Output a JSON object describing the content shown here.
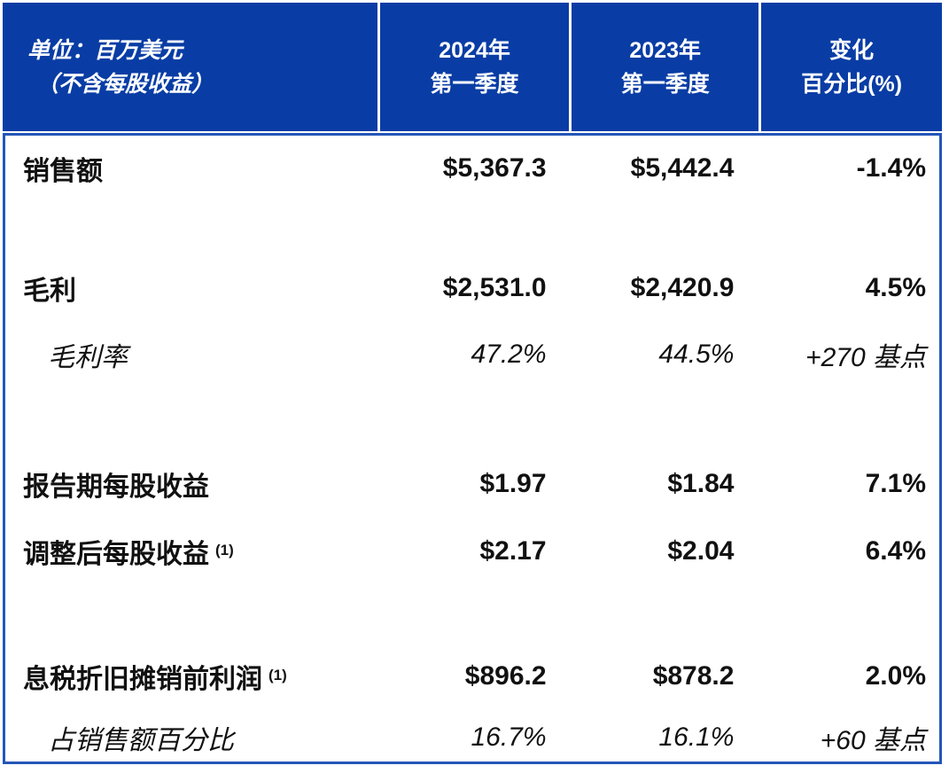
{
  "colors": {
    "header_blue": "#093da5",
    "border_blue": "#2456b8",
    "header_text": "#ffffff",
    "body_text": "#111111"
  },
  "table": {
    "header": {
      "unit_line1": "单位：百万美元",
      "unit_line2": "（不含每股收益）",
      "col2024_line1": "2024年",
      "col2024_line2": "第一季度",
      "col2023_line1": "2023年",
      "col2023_line2": "第一季度",
      "change_line1": "变化",
      "change_line2": "百分比(%)"
    },
    "rows": [
      {
        "label": "销售额",
        "v2024": "$5,367.3",
        "v2023": "$5,442.4",
        "change": "-1.4%"
      },
      {
        "label": "毛利",
        "v2024": "$2,531.0",
        "v2023": "$2,420.9",
        "change": "4.5%"
      },
      {
        "label": "毛利率",
        "v2024": "47.2%",
        "v2023": "44.5%",
        "change": "+270 基点"
      },
      {
        "label": "报告期每股收益",
        "v2024": "$1.97",
        "v2023": "$1.84",
        "change": "7.1%"
      },
      {
        "label": "调整后每股收益",
        "sup": "(1)",
        "v2024": "$2.17",
        "v2023": "$2.04",
        "change": "6.4%"
      },
      {
        "label": "息税折旧摊销前利润",
        "sup": "(1)",
        "v2024": "$896.2",
        "v2023": "$878.2",
        "change": "2.0%"
      },
      {
        "label": "占销售额百分比",
        "v2024": "16.7%",
        "v2023": "16.1%",
        "change": "+60 基点"
      }
    ]
  },
  "chart_data": {
    "type": "table",
    "title": "单位：百万美元（不含每股收益）",
    "columns": [
      "",
      "2024年第一季度",
      "2023年第一季度",
      "变化百分比(%)"
    ],
    "rows": [
      [
        "销售额",
        "$5,367.3",
        "$5,442.4",
        "-1.4%"
      ],
      [
        "毛利",
        "$2,531.0",
        "$2,420.9",
        "4.5%"
      ],
      [
        "毛利率",
        "47.2%",
        "44.5%",
        "+270 基点"
      ],
      [
        "报告期每股收益",
        "$1.97",
        "$1.84",
        "7.1%"
      ],
      [
        "调整后每股收益 (1)",
        "$2.17",
        "$2.04",
        "6.4%"
      ],
      [
        "息税折旧摊销前利润 (1)",
        "$896.2",
        "$878.2",
        "2.0%"
      ],
      [
        "占销售额百分比",
        "16.7%",
        "16.1%",
        "+60 基点"
      ]
    ]
  }
}
